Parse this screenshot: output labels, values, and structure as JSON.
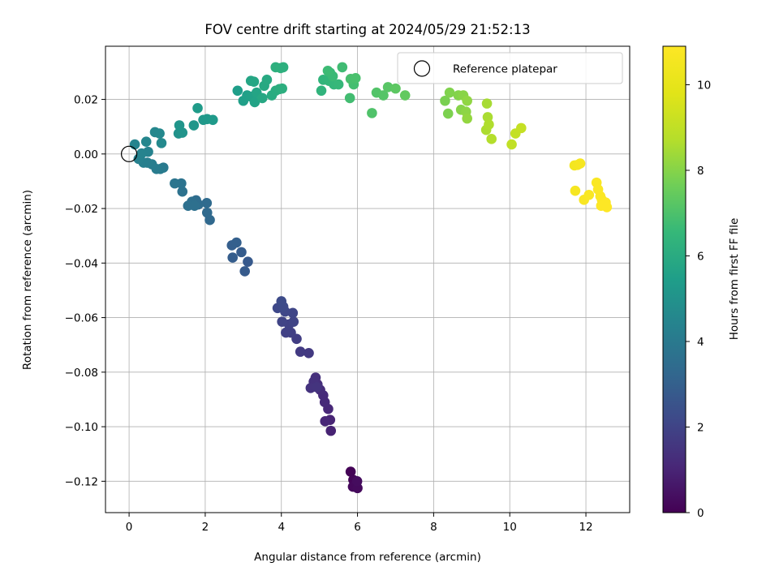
{
  "chart_data": {
    "type": "scatter",
    "title": "FOV centre drift starting at 2024/05/29 21:52:13",
    "xlabel": "Angular distance from reference (arcmin)",
    "ylabel": "Rotation from reference (arcmin)",
    "xlim": [
      -0.62,
      13.15
    ],
    "ylim": [
      -0.1315,
      0.0395
    ],
    "xticks": [
      0,
      2,
      4,
      6,
      8,
      10,
      12
    ],
    "yticks": [
      -0.12,
      -0.1,
      -0.08,
      -0.06,
      -0.04,
      -0.02,
      0.0,
      0.02
    ],
    "ytick_labels": [
      "−0.12",
      "−0.10",
      "−0.08",
      "−0.06",
      "−0.04",
      "−0.02",
      "0.00",
      "0.02"
    ],
    "grid": true,
    "colormap": "viridis",
    "colorbar": {
      "label": "Hours from first FF file",
      "range": [
        0,
        10.9
      ],
      "ticks": [
        0,
        2,
        4,
        6,
        8,
        10
      ]
    },
    "legend": {
      "position": "top-right",
      "entries": [
        {
          "label": "Reference platepar",
          "marker": "open-circle",
          "x": 0,
          "y": 0
        }
      ]
    },
    "points": [
      {
        "x": 5.82,
        "y": -0.1165,
        "t": 0.05
      },
      {
        "x": 5.89,
        "y": -0.1195,
        "t": 0.1
      },
      {
        "x": 5.96,
        "y": -0.1205,
        "t": 0.15
      },
      {
        "x": 5.88,
        "y": -0.122,
        "t": 0.2
      },
      {
        "x": 6.0,
        "y": -0.1225,
        "t": 0.25
      },
      {
        "x": 5.99,
        "y": -0.12,
        "t": 0.3
      },
      {
        "x": 5.3,
        "y": -0.1015,
        "t": 0.95
      },
      {
        "x": 5.28,
        "y": -0.0975,
        "t": 1.0
      },
      {
        "x": 5.15,
        "y": -0.098,
        "t": 1.05
      },
      {
        "x": 5.23,
        "y": -0.0935,
        "t": 1.1
      },
      {
        "x": 5.14,
        "y": -0.091,
        "t": 1.15
      },
      {
        "x": 5.1,
        "y": -0.0885,
        "t": 1.2
      },
      {
        "x": 5.02,
        "y": -0.0865,
        "t": 1.25
      },
      {
        "x": 4.95,
        "y": -0.0845,
        "t": 1.3
      },
      {
        "x": 4.9,
        "y": -0.082,
        "t": 1.35
      },
      {
        "x": 4.85,
        "y": -0.0835,
        "t": 1.4
      },
      {
        "x": 4.77,
        "y": -0.0858,
        "t": 1.45
      },
      {
        "x": 4.93,
        "y": -0.0855,
        "t": 1.5
      },
      {
        "x": 4.72,
        "y": -0.073,
        "t": 1.65
      },
      {
        "x": 4.5,
        "y": -0.0725,
        "t": 1.7
      },
      {
        "x": 4.4,
        "y": -0.0678,
        "t": 1.8
      },
      {
        "x": 4.25,
        "y": -0.0655,
        "t": 1.85
      },
      {
        "x": 4.12,
        "y": -0.0655,
        "t": 1.9
      },
      {
        "x": 4.2,
        "y": -0.0625,
        "t": 1.95
      },
      {
        "x": 4.02,
        "y": -0.0615,
        "t": 2.0
      },
      {
        "x": 4.32,
        "y": -0.0615,
        "t": 2.0
      },
      {
        "x": 4.3,
        "y": -0.0583,
        "t": 2.05
      },
      {
        "x": 4.1,
        "y": -0.0578,
        "t": 2.1
      },
      {
        "x": 3.9,
        "y": -0.0565,
        "t": 2.15
      },
      {
        "x": 4.05,
        "y": -0.056,
        "t": 2.2
      },
      {
        "x": 4.0,
        "y": -0.054,
        "t": 2.25
      },
      {
        "x": 3.12,
        "y": -0.0395,
        "t": 2.75
      },
      {
        "x": 3.04,
        "y": -0.043,
        "t": 2.8
      },
      {
        "x": 2.95,
        "y": -0.036,
        "t": 2.85
      },
      {
        "x": 2.72,
        "y": -0.038,
        "t": 2.9
      },
      {
        "x": 2.7,
        "y": -0.0335,
        "t": 2.95
      },
      {
        "x": 2.82,
        "y": -0.0325,
        "t": 3.0
      },
      {
        "x": 2.12,
        "y": -0.0242,
        "t": 3.3
      },
      {
        "x": 2.05,
        "y": -0.0215,
        "t": 3.35
      },
      {
        "x": 2.04,
        "y": -0.018,
        "t": 3.4
      },
      {
        "x": 1.82,
        "y": -0.0185,
        "t": 3.45
      },
      {
        "x": 1.76,
        "y": -0.017,
        "t": 3.5
      },
      {
        "x": 1.65,
        "y": -0.0175,
        "t": 3.55
      },
      {
        "x": 1.55,
        "y": -0.019,
        "t": 3.6
      },
      {
        "x": 1.72,
        "y": -0.019,
        "t": 3.6
      },
      {
        "x": 1.4,
        "y": -0.0138,
        "t": 3.7
      },
      {
        "x": 1.37,
        "y": -0.0108,
        "t": 3.75
      },
      {
        "x": 1.2,
        "y": -0.0108,
        "t": 3.8
      },
      {
        "x": 0.9,
        "y": -0.005,
        "t": 4.0
      },
      {
        "x": 0.82,
        "y": -0.0055,
        "t": 4.05
      },
      {
        "x": 0.72,
        "y": -0.0055,
        "t": 4.1
      },
      {
        "x": 0.6,
        "y": -0.0038,
        "t": 4.15
      },
      {
        "x": 0.48,
        "y": -0.0032,
        "t": 4.2
      },
      {
        "x": 0.38,
        "y": -0.0032,
        "t": 4.25
      },
      {
        "x": 0.25,
        "y": -0.0018,
        "t": 4.3
      },
      {
        "x": 0.5,
        "y": 0.0008,
        "t": 4.35
      },
      {
        "x": 0.33,
        "y": 0.0002,
        "t": 4.4
      },
      {
        "x": 0.15,
        "y": 0.0035,
        "t": 4.45
      },
      {
        "x": 0.45,
        "y": 0.0045,
        "t": 4.5
      },
      {
        "x": 0.68,
        "y": 0.008,
        "t": 4.55
      },
      {
        "x": 0.8,
        "y": 0.0075,
        "t": 4.6
      },
      {
        "x": 0.85,
        "y": 0.004,
        "t": 4.65
      },
      {
        "x": 1.3,
        "y": 0.0075,
        "t": 5.0
      },
      {
        "x": 1.4,
        "y": 0.0078,
        "t": 5.05
      },
      {
        "x": 1.32,
        "y": 0.0105,
        "t": 5.1
      },
      {
        "x": 1.7,
        "y": 0.0105,
        "t": 5.15
      },
      {
        "x": 1.95,
        "y": 0.0125,
        "t": 5.2
      },
      {
        "x": 2.05,
        "y": 0.0128,
        "t": 5.25
      },
      {
        "x": 2.2,
        "y": 0.0125,
        "t": 5.3
      },
      {
        "x": 1.8,
        "y": 0.0168,
        "t": 5.35
      },
      {
        "x": 2.85,
        "y": 0.0232,
        "t": 5.45
      },
      {
        "x": 3.0,
        "y": 0.0195,
        "t": 5.5
      },
      {
        "x": 3.1,
        "y": 0.0215,
        "t": 5.55
      },
      {
        "x": 3.2,
        "y": 0.021,
        "t": 5.6
      },
      {
        "x": 3.3,
        "y": 0.019,
        "t": 5.65
      },
      {
        "x": 3.35,
        "y": 0.0225,
        "t": 5.7
      },
      {
        "x": 3.2,
        "y": 0.0268,
        "t": 5.75
      },
      {
        "x": 3.28,
        "y": 0.0265,
        "t": 5.8
      },
      {
        "x": 3.5,
        "y": 0.0205,
        "t": 5.85
      },
      {
        "x": 3.55,
        "y": 0.025,
        "t": 5.9
      },
      {
        "x": 3.62,
        "y": 0.0272,
        "t": 5.95
      },
      {
        "x": 3.75,
        "y": 0.0215,
        "t": 6.0
      },
      {
        "x": 3.85,
        "y": 0.0232,
        "t": 6.05
      },
      {
        "x": 3.95,
        "y": 0.0238,
        "t": 6.1
      },
      {
        "x": 4.02,
        "y": 0.024,
        "t": 6.15
      },
      {
        "x": 3.85,
        "y": 0.0318,
        "t": 6.2
      },
      {
        "x": 3.98,
        "y": 0.0315,
        "t": 6.25
      },
      {
        "x": 4.05,
        "y": 0.0318,
        "t": 6.2
      },
      {
        "x": 5.05,
        "y": 0.0232,
        "t": 6.35
      },
      {
        "x": 5.1,
        "y": 0.0272,
        "t": 6.4
      },
      {
        "x": 5.25,
        "y": 0.0268,
        "t": 6.45
      },
      {
        "x": 5.38,
        "y": 0.0255,
        "t": 6.5
      },
      {
        "x": 5.5,
        "y": 0.0255,
        "t": 6.55
      },
      {
        "x": 5.28,
        "y": 0.0298,
        "t": 6.6
      },
      {
        "x": 5.35,
        "y": 0.0285,
        "t": 6.65
      },
      {
        "x": 5.22,
        "y": 0.0305,
        "t": 6.7
      },
      {
        "x": 5.6,
        "y": 0.0318,
        "t": 6.75
      },
      {
        "x": 5.8,
        "y": 0.0205,
        "t": 6.8
      },
      {
        "x": 5.9,
        "y": 0.0255,
        "t": 6.85
      },
      {
        "x": 5.82,
        "y": 0.0275,
        "t": 6.9
      },
      {
        "x": 5.95,
        "y": 0.0278,
        "t": 6.95
      },
      {
        "x": 6.38,
        "y": 0.015,
        "t": 7.05
      },
      {
        "x": 6.5,
        "y": 0.0225,
        "t": 7.1
      },
      {
        "x": 6.68,
        "y": 0.0215,
        "t": 7.15
      },
      {
        "x": 6.8,
        "y": 0.0245,
        "t": 7.2
      },
      {
        "x": 7.0,
        "y": 0.024,
        "t": 7.3
      },
      {
        "x": 7.25,
        "y": 0.0215,
        "t": 7.4
      },
      {
        "x": 8.3,
        "y": 0.0195,
        "t": 7.8
      },
      {
        "x": 8.38,
        "y": 0.0148,
        "t": 7.85
      },
      {
        "x": 8.42,
        "y": 0.0225,
        "t": 7.9
      },
      {
        "x": 8.65,
        "y": 0.0215,
        "t": 7.95
      },
      {
        "x": 8.72,
        "y": 0.0162,
        "t": 8.0
      },
      {
        "x": 8.78,
        "y": 0.0215,
        "t": 8.05
      },
      {
        "x": 8.85,
        "y": 0.0155,
        "t": 8.1
      },
      {
        "x": 8.88,
        "y": 0.0195,
        "t": 8.15
      },
      {
        "x": 8.88,
        "y": 0.013,
        "t": 8.2
      },
      {
        "x": 9.4,
        "y": 0.0185,
        "t": 8.5
      },
      {
        "x": 9.42,
        "y": 0.0135,
        "t": 8.55
      },
      {
        "x": 9.38,
        "y": 0.0088,
        "t": 8.6
      },
      {
        "x": 9.45,
        "y": 0.0108,
        "t": 8.65
      },
      {
        "x": 9.52,
        "y": 0.0055,
        "t": 8.7
      },
      {
        "x": 10.05,
        "y": 0.0035,
        "t": 9.0
      },
      {
        "x": 10.15,
        "y": 0.0075,
        "t": 9.05
      },
      {
        "x": 10.3,
        "y": 0.0095,
        "t": 9.1
      },
      {
        "x": 11.7,
        "y": -0.0042,
        "t": 10.5
      },
      {
        "x": 11.78,
        "y": -0.004,
        "t": 10.55
      },
      {
        "x": 11.85,
        "y": -0.0035,
        "t": 10.6
      },
      {
        "x": 11.72,
        "y": -0.0135,
        "t": 10.6
      },
      {
        "x": 11.95,
        "y": -0.0168,
        "t": 10.7
      },
      {
        "x": 12.08,
        "y": -0.015,
        "t": 10.72
      },
      {
        "x": 12.28,
        "y": -0.0105,
        "t": 10.75
      },
      {
        "x": 12.32,
        "y": -0.013,
        "t": 10.78
      },
      {
        "x": 12.38,
        "y": -0.0155,
        "t": 10.8
      },
      {
        "x": 12.42,
        "y": -0.0168,
        "t": 10.82
      },
      {
        "x": 12.48,
        "y": -0.0185,
        "t": 10.85
      },
      {
        "x": 12.52,
        "y": -0.0178,
        "t": 10.88
      },
      {
        "x": 12.4,
        "y": -0.019,
        "t": 10.88
      },
      {
        "x": 12.55,
        "y": -0.0195,
        "t": 10.9
      }
    ]
  }
}
